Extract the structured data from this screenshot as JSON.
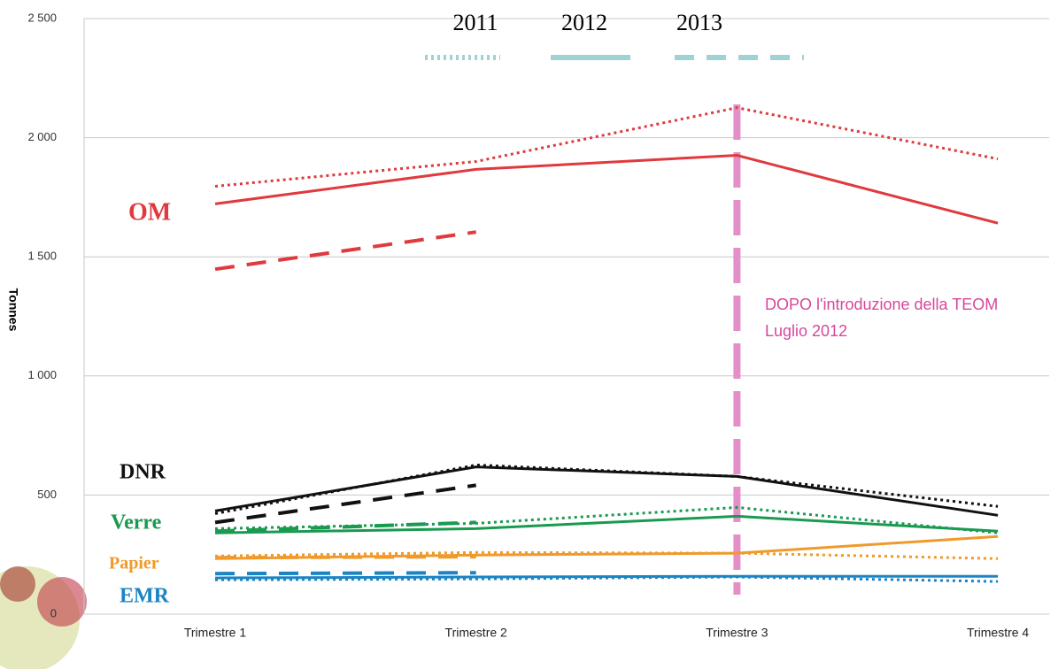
{
  "chart_data": {
    "type": "line",
    "ylabel": "Tonnes",
    "categories": [
      "Trimestre 1",
      "Trimestre 2",
      "Trimestre 3",
      "Trimestre 4"
    ],
    "ylim": [
      0,
      2500
    ],
    "yticks": [
      0,
      500,
      {
        "value": 1000,
        "label": "1 000"
      },
      {
        "value": 1500,
        "label": "1 500"
      },
      {
        "value": 2000,
        "label": "2 000"
      },
      {
        "value": 2500,
        "label": "2 500"
      }
    ],
    "grid": true,
    "legend": {
      "color": "#9fd3d3",
      "items": [
        {
          "name": "2011",
          "dash": "dotted"
        },
        {
          "name": "2012",
          "dash": "solid"
        },
        {
          "name": "2013",
          "dash": "dashed"
        }
      ]
    },
    "groups": [
      {
        "name": "OM",
        "color": "#e0393e",
        "values": [
          [
            1796,
            1900,
            2126,
            1911
          ],
          [
            1722,
            1867,
            1926,
            1641
          ],
          [
            1448,
            1604,
            null,
            null
          ]
        ]
      },
      {
        "name": "DNR",
        "color": "#111111",
        "values": [
          [
            422,
            626,
            578,
            452
          ],
          [
            433,
            618,
            578,
            415
          ],
          [
            385,
            541,
            null,
            null
          ]
        ]
      },
      {
        "name": "Verre",
        "color": "#1a9a50",
        "values": [
          [
            359,
            381,
            448,
            341
          ],
          [
            341,
            359,
            411,
            348
          ],
          [
            348,
            385,
            null,
            null
          ]
        ]
      },
      {
        "name": "Papier",
        "color": "#ef9a2b",
        "values": [
          [
            244,
            259,
            256,
            233
          ],
          [
            233,
            248,
            256,
            326
          ],
          [
            237,
            241,
            null,
            null
          ]
        ]
      },
      {
        "name": "EMR",
        "color": "#1b84c4",
        "values": [
          [
            144,
            148,
            156,
            137
          ],
          [
            152,
            156,
            159,
            159
          ],
          [
            170,
            174,
            null,
            null
          ]
        ]
      }
    ],
    "annotation": {
      "category": 2,
      "color": "#e58fc8",
      "lines": [
        "DOPO l'introduzione della TEOM",
        "Luglio 2012"
      ]
    }
  }
}
